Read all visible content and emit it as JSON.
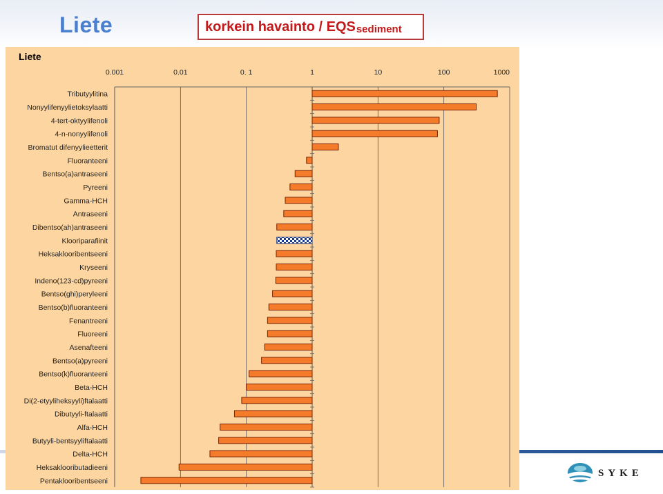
{
  "header": {
    "title": "Liete",
    "subtitle_main": "korkein havainto / EQS",
    "subtitle_sub": "sediment"
  },
  "panel_label": "Liete",
  "logo": {
    "text": "SYKE"
  },
  "colors": {
    "bar_fill": "#f47b2a",
    "bar_stroke": "#7a2000",
    "panel_bg": "#fdd5a0",
    "title_blue": "#4a7fd0",
    "subtitle_red": "#c3191b"
  },
  "chart_data": {
    "type": "bar",
    "orientation": "horizontal",
    "x_scale": "log",
    "xlim": [
      0.001,
      1000
    ],
    "xticks": [
      0.001,
      0.01,
      0.1,
      1,
      10,
      100,
      1000
    ],
    "xtick_labels": [
      "0.001",
      "0.01",
      "0. 1",
      "1",
      "10",
      "100",
      "1000"
    ],
    "axis_position": "top",
    "grid": true,
    "categories": [
      "Tributyylitina",
      "Nonyylifenyylietoksylaatti",
      "4-tert-oktyylifenoli",
      "4-n-nonyylifenoli",
      "Bromatut difenyylieetterit",
      "Fluoranteeni",
      "Bentso(a)antraseeni",
      "Pyreeni",
      "Gamma-HCH",
      "Antraseeni",
      "Dibentso(ah)antraseeni",
      "Klooriparafiinit",
      "Heksaklooribentseeni",
      "Kryseeni",
      "Indeno(123-cd)pyreeni",
      "Bentso(ghi)peryleeni",
      "Bentso(b)fluoranteeni",
      "Fenantreeni",
      "Fluoreeni",
      "Asenafteeni",
      "Bentso(a)pyreeni",
      "Bentso(k)fluoranteeni",
      "Beta-HCH",
      "Di(2-etyyliheksyyli)ftalaatti",
      "Dibutyyli-ftalaatti",
      "Alfa-HCH",
      "Butyyli-bentsyyliftalaatti",
      "Delta-HCH",
      "Heksaklooributadieeni",
      "Pentaklooribentseeni"
    ],
    "values": [
      650,
      310,
      85,
      80,
      2.5,
      0.82,
      0.55,
      0.46,
      0.39,
      0.37,
      0.29,
      0.29,
      0.285,
      0.285,
      0.28,
      0.25,
      0.22,
      0.21,
      0.21,
      0.19,
      0.17,
      0.11,
      0.1,
      0.085,
      0.066,
      0.04,
      0.038,
      0.028,
      0.0095,
      0.0025
    ],
    "hatched_categories": [
      "Klooriparafiinit"
    ]
  }
}
